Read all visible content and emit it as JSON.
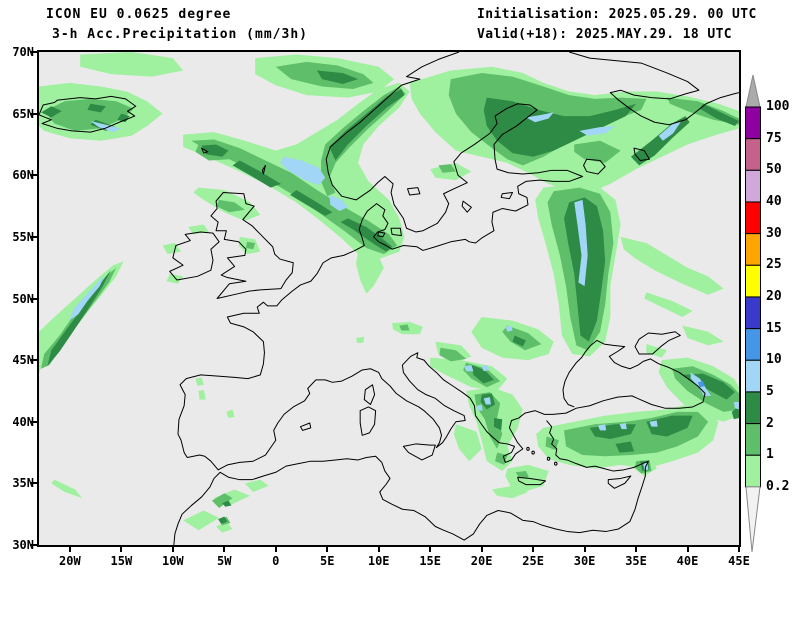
{
  "header": {
    "model_line": "ICON EU 0.0625 degree",
    "product_line": "3-h Acc.Precipitation (mm/3h)",
    "init_line": "Initialisation: 2025.05.29. 00 UTC",
    "valid_line": "Valid(+18): 2025.MAY.29. 18 UTC"
  },
  "map": {
    "lon_min": -23,
    "lon_max": 45,
    "lat_min": 30,
    "lat_max": 70,
    "background": "#EAEAEA",
    "coastline_color": "#000000",
    "precip_colors": {
      "light_green": "#9FF09F",
      "mid_green": "#5EBE69",
      "dark_green": "#2E8B45",
      "light_blue": "#A2D6F6",
      "mid_blue": "#4596E6"
    }
  },
  "axes": {
    "lat_ticks": [
      {
        "label": "70N",
        "deg": 70
      },
      {
        "label": "65N",
        "deg": 65
      },
      {
        "label": "60N",
        "deg": 60
      },
      {
        "label": "55N",
        "deg": 55
      },
      {
        "label": "50N",
        "deg": 50
      },
      {
        "label": "45N",
        "deg": 45
      },
      {
        "label": "40N",
        "deg": 40
      },
      {
        "label": "35N",
        "deg": 35
      },
      {
        "label": "30N",
        "deg": 30
      }
    ],
    "lon_ticks": [
      {
        "label": "20W",
        "deg": -20
      },
      {
        "label": "15W",
        "deg": -15
      },
      {
        "label": "10W",
        "deg": -10
      },
      {
        "label": "5W",
        "deg": -5
      },
      {
        "label": "0",
        "deg": 0
      },
      {
        "label": "5E",
        "deg": 5
      },
      {
        "label": "10E",
        "deg": 10
      },
      {
        "label": "15E",
        "deg": 15
      },
      {
        "label": "20E",
        "deg": 20
      },
      {
        "label": "25E",
        "deg": 25
      },
      {
        "label": "30E",
        "deg": 30
      },
      {
        "label": "35E",
        "deg": 35
      },
      {
        "label": "40E",
        "deg": 40
      },
      {
        "label": "45E",
        "deg": 45
      }
    ]
  },
  "colorbar": {
    "labels_top_to_bottom": [
      "100",
      "75",
      "50",
      "40",
      "30",
      "25",
      "20",
      "15",
      "10",
      "5",
      "2",
      "1",
      "0.2"
    ],
    "colors_top_to_bottom": [
      "#8E00A0",
      "#C4628C",
      "#D0A8DA",
      "#FF0000",
      "#FFA500",
      "#FFFF00",
      "#3A3ACA",
      "#4596E6",
      "#A2D6F6",
      "#2E8B45",
      "#5EBE69",
      "#9FF09F"
    ],
    "over_color": "#ABABAB",
    "under_color": "#F2F2F2"
  }
}
